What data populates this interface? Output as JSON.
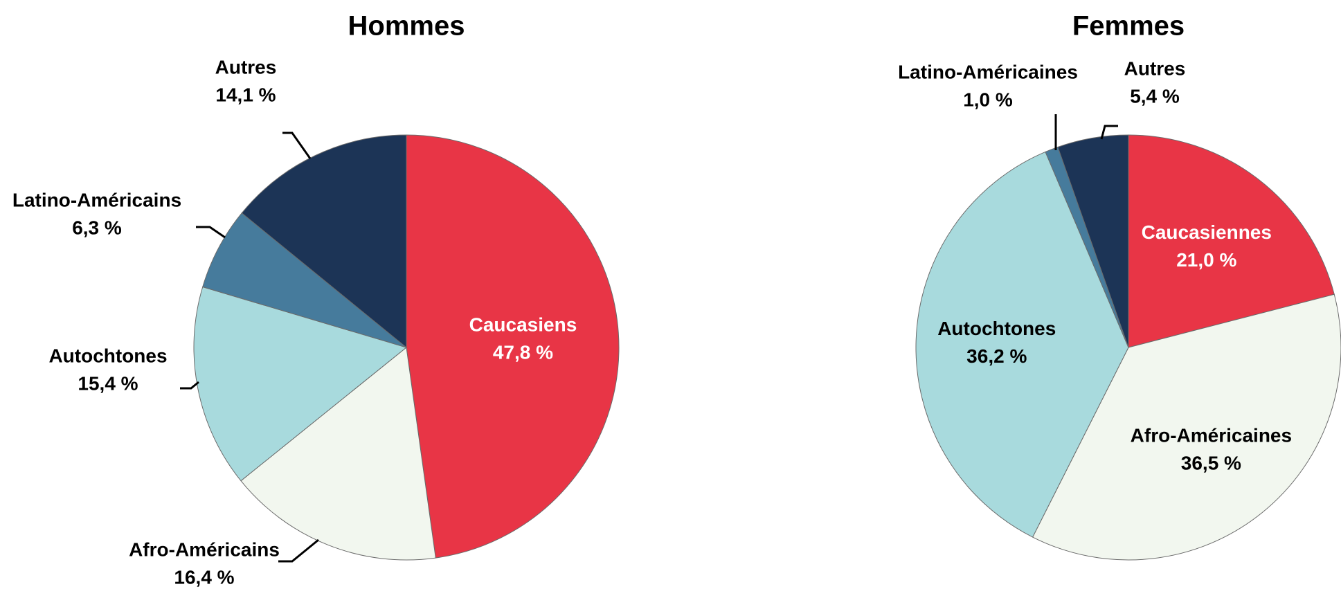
{
  "chart_data": [
    {
      "type": "pie",
      "title": "Hommes",
      "slices": [
        {
          "label": "Caucasiens",
          "value": 47.8,
          "value_label": "47,8 %",
          "color": "#e83546",
          "label_color": "#ffffff"
        },
        {
          "label": "Afro-Américains",
          "value": 16.4,
          "value_label": "16,4 %",
          "color": "#f2f7ef",
          "label_color": "#000000"
        },
        {
          "label": "Autochtones",
          "value": 15.4,
          "value_label": "15,4 %",
          "color": "#a8dadd",
          "label_color": "#000000"
        },
        {
          "label": "Latino-Américains",
          "value": 6.3,
          "value_label": "6,3 %",
          "color": "#467b9c",
          "label_color": "#000000"
        },
        {
          "label": "Autres",
          "value": 14.1,
          "value_label": "14,1 %",
          "color": "#1c3456",
          "label_color": "#000000"
        }
      ]
    },
    {
      "type": "pie",
      "title": "Femmes",
      "slices": [
        {
          "label": "Caucasiennes",
          "value": 21.0,
          "value_label": "21,0 %",
          "color": "#e83546",
          "label_color": "#ffffff"
        },
        {
          "label": "Afro-Américaines",
          "value": 36.5,
          "value_label": "36,5 %",
          "color": "#f2f7ef",
          "label_color": "#000000"
        },
        {
          "label": "Autochtones",
          "value": 36.2,
          "value_label": "36,2 %",
          "color": "#a8dadd",
          "label_color": "#000000"
        },
        {
          "label": "Latino-Américaines",
          "value": 1.0,
          "value_label": "1,0 %",
          "color": "#467b9c",
          "label_color": "#000000"
        },
        {
          "label": "Autres",
          "value": 5.4,
          "value_label": "5,4 %",
          "color": "#1c3456",
          "label_color": "#000000"
        }
      ]
    }
  ]
}
